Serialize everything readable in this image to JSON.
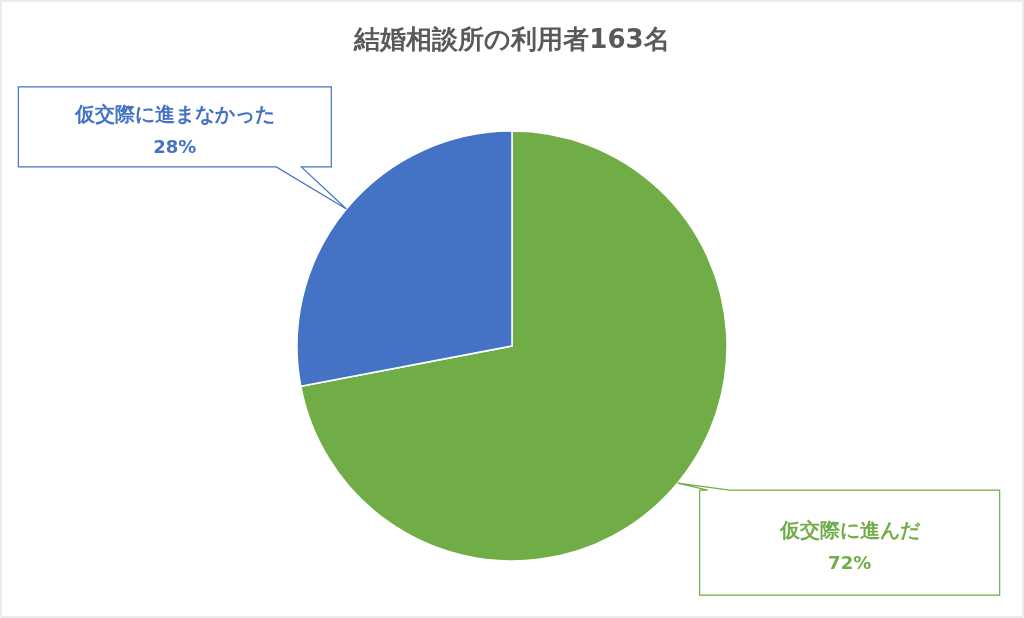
{
  "chart_data": {
    "type": "pie",
    "title": "結婚相談所の利用者163名",
    "categories": [
      "仮交際に進んだ",
      "仮交際に進まなかった"
    ],
    "values": [
      72,
      28
    ],
    "colors": [
      "#70ad47",
      "#4472c4"
    ],
    "value_labels": [
      "72%",
      "28%"
    ]
  }
}
